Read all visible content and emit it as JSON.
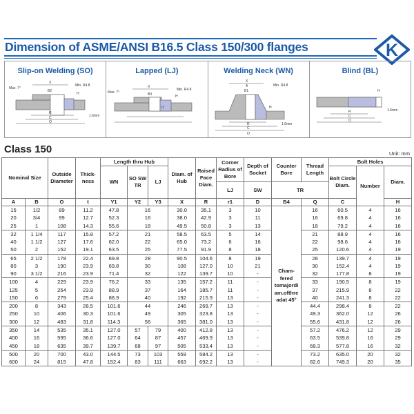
{
  "header": {
    "title": "Dimension of ASME/ANSI B16.5 Class 150/300 flanges",
    "logo_letter": "K",
    "brand_color": "#1b5aa8"
  },
  "diagrams": [
    {
      "title": "Slip-on Welding (SO)",
      "labels": {
        "x": "X",
        "b": "B2",
        "r": "R",
        "c": "C",
        "o": "O",
        "h": "H",
        "min": "Min. R4.8",
        "max": "Max. 7°",
        "gap": "1.6mm",
        "t": "t",
        "y": "Y2"
      }
    },
    {
      "title": "Lapped (LJ)",
      "labels": {
        "x": "X",
        "b": "B3",
        "r": "r1",
        "c": "C",
        "o": "O",
        "h": "H",
        "min": "Min. R4.8",
        "max": "Max. 7°",
        "t": "t",
        "y": "Y3"
      }
    },
    {
      "title": "Welding Neck (WN)",
      "labels": {
        "x": "X",
        "a": "A",
        "b": "B1",
        "r": "R",
        "c": "C",
        "o": "O",
        "h": "H",
        "min": "Min. R4.8",
        "gap": "1.6mm",
        "t": "t",
        "y": "Y1"
      }
    },
    {
      "title": "Blind (BL)",
      "labels": {
        "r": "R",
        "c": "C",
        "o": "O",
        "h": "H",
        "gap": "1.6mm",
        "t": "t"
      }
    }
  ],
  "section": {
    "title": "Class 150",
    "unit": "Unit: mm"
  },
  "table": {
    "headers": {
      "nominal": "Nominal Size",
      "outside": "Outside Diameter",
      "thick": "Thick-ness",
      "length": "Length thru Hub",
      "wn": "WN",
      "sosw": "SO SW TR",
      "lj": "LJ",
      "hub": "Diam. of Hub",
      "raised": "Raised Face Diam.",
      "corner": "Corner Radius of Bore",
      "corner_sub": "LJ",
      "depth": "Depth of Socket",
      "depth_sub": "SW",
      "counter": "Counter Bore",
      "thread": "Thread Length",
      "tr": "TR",
      "bolt": "Bolt Holes",
      "circle": "Bolt Circle Diam.",
      "number": "Number",
      "diam": "Diam."
    },
    "labels": [
      "A",
      "B",
      "O",
      "t",
      "Y1",
      "Y2",
      "Y3",
      "X",
      "R",
      "r1",
      "D",
      "B4",
      "Q",
      "C",
      "",
      "H"
    ],
    "b4_text": "Cham-fered tomajordi am.ofthre adat 45°",
    "rows": [
      [
        "15",
        "1/2",
        "89",
        "11.2",
        "47.8",
        "16",
        "",
        "30.0",
        "35.1",
        "3",
        "10",
        "16",
        "60.5",
        "4",
        "16"
      ],
      [
        "20",
        "3/4",
        "99",
        "12.7",
        "52.3",
        "16",
        "",
        "38.0",
        "42.9",
        "3",
        "11",
        "16",
        "69.8",
        "4",
        "16"
      ],
      [
        "25",
        "1",
        "108",
        "14.3",
        "55.6",
        "18",
        "",
        "49.5",
        "50.8",
        "3",
        "13",
        "18",
        "79.2",
        "4",
        "16"
      ],
      [
        "32",
        "1 1/4",
        "117",
        "15.8",
        "57.2",
        "21",
        "",
        "58.5",
        "63.5",
        "5",
        "14",
        "21",
        "88.9",
        "4",
        "16"
      ],
      [
        "40",
        "1 1/2",
        "127",
        "17.6",
        "62.0",
        "22",
        "",
        "65.0",
        "73.2",
        "6",
        "16",
        "22",
        "98.6",
        "4",
        "16"
      ],
      [
        "50",
        "2",
        "152",
        "19.1",
        "63.5",
        "25",
        "",
        "77.5",
        "91.9",
        "8",
        "18",
        "25",
        "120.6",
        "4",
        "19"
      ],
      [
        "65",
        "2 1/2",
        "178",
        "22.4",
        "69.8",
        "28",
        "",
        "90.5",
        "104.6",
        "8",
        "19",
        "28",
        "139.7",
        "4",
        "19"
      ],
      [
        "80",
        "3",
        "190",
        "23.9",
        "69.8",
        "30",
        "",
        "108",
        "127.0",
        "10",
        "21",
        "30",
        "152.4",
        "4",
        "19"
      ],
      [
        "90",
        "3 1/2",
        "216",
        "23.9",
        "71.4",
        "32",
        "",
        "122",
        "139.7",
        "10",
        "-",
        "32",
        "177.8",
        "8",
        "19"
      ],
      [
        "100",
        "4",
        "229",
        "23.9",
        "76.2",
        "33",
        "",
        "135",
        "157.2",
        "11",
        "-",
        "33",
        "190.5",
        "8",
        "19"
      ],
      [
        "125",
        "5",
        "254",
        "23.9",
        "88.9",
        "37",
        "",
        "164",
        "185.7",
        "11",
        "-",
        "37",
        "215.9",
        "8",
        "22"
      ],
      [
        "150",
        "6",
        "279",
        "25.4",
        "88.9",
        "40",
        "",
        "192",
        "215.9",
        "13",
        "-",
        "40",
        "241.3",
        "8",
        "22"
      ],
      [
        "200",
        "8",
        "343",
        "28.5",
        "101.6",
        "44",
        "",
        "246",
        "269.7",
        "13",
        "-",
        "44.4",
        "298.4",
        "8",
        "22"
      ],
      [
        "250",
        "10",
        "406",
        "30.3",
        "101.6",
        "49",
        "",
        "305",
        "323.8",
        "13",
        "-",
        "49.3",
        "362.0",
        "12",
        "26"
      ],
      [
        "300",
        "12",
        "483",
        "31.8",
        "114.3",
        "56",
        "",
        "365",
        "381.0",
        "13",
        "-",
        "55.6",
        "431.8",
        "12",
        "26"
      ],
      [
        "350",
        "14",
        "535",
        "35.1",
        "127.0",
        "57",
        "79",
        "400",
        "412.8",
        "13",
        "-",
        "57.2",
        "476.2",
        "12",
        "29"
      ],
      [
        "400",
        "16",
        "595",
        "36.6",
        "127.0",
        "64",
        "87",
        "457",
        "469.9",
        "13",
        "-",
        "63.5",
        "539.8",
        "16",
        "29"
      ],
      [
        "450",
        "18",
        "635",
        "39.7",
        "139.7",
        "68",
        "97",
        "505",
        "533.4",
        "13",
        "-",
        "68.3",
        "577.8",
        "16",
        "32"
      ],
      [
        "500",
        "20",
        "700",
        "43.0",
        "144.5",
        "73",
        "103",
        "559",
        "584.2",
        "13",
        "-",
        "73.2",
        "635.0",
        "20",
        "32"
      ],
      [
        "600",
        "24",
        "815",
        "47.8",
        "152.4",
        "83",
        "111",
        "663",
        "692.2",
        "13",
        "-",
        "82.6",
        "749.3",
        "20",
        "35"
      ]
    ]
  }
}
